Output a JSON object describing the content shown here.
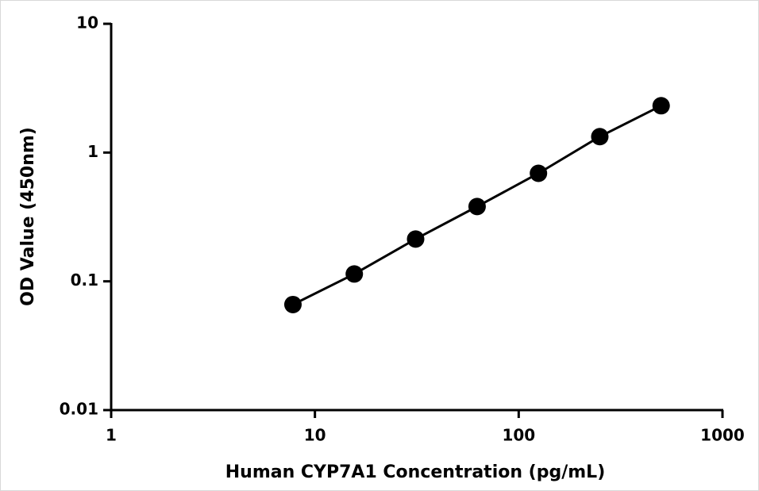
{
  "chart_data": {
    "type": "line",
    "x_label": "Human CYP7A1 Concentration (pg/mL)",
    "y_label": "OD Value (450nm)",
    "x": [
      7.8,
      15.6,
      31.2,
      62.5,
      125,
      250,
      500
    ],
    "values": [
      0.066,
      0.114,
      0.213,
      0.381,
      0.69,
      1.33,
      2.31
    ],
    "color": "#000000",
    "xscale": "log",
    "yscale": "log",
    "xlim": [
      1,
      1000
    ],
    "xticks": [
      1,
      10,
      100,
      1000
    ],
    "ylim": [
      0.01,
      10
    ],
    "yticks": [
      0.01,
      0.1,
      1,
      10
    ]
  }
}
